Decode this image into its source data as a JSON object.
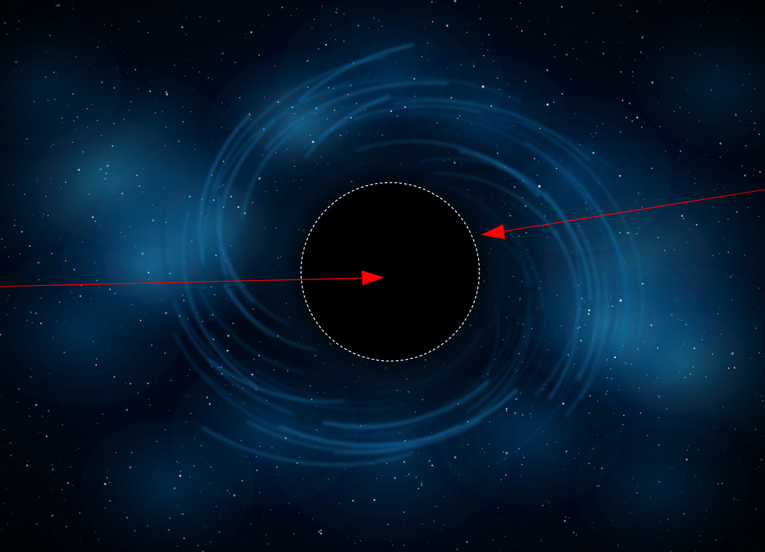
{
  "colors": {
    "background": "#000000",
    "nebula_deep": "#02142c",
    "nebula_mid": "#0a4f86",
    "nebula_glow": "#2aa6d8",
    "star": "#d8f2ff",
    "event_horizon": "#000000",
    "horizon_outline": "#ffffff",
    "arrow": "#ff0000"
  },
  "scene": {
    "black_hole": {
      "fill": "event_horizon",
      "outline_style": "dashed"
    },
    "arrows": [
      {
        "name": "arrow-into-center"
      },
      {
        "name": "arrow-to-horizon-edge"
      }
    ]
  }
}
